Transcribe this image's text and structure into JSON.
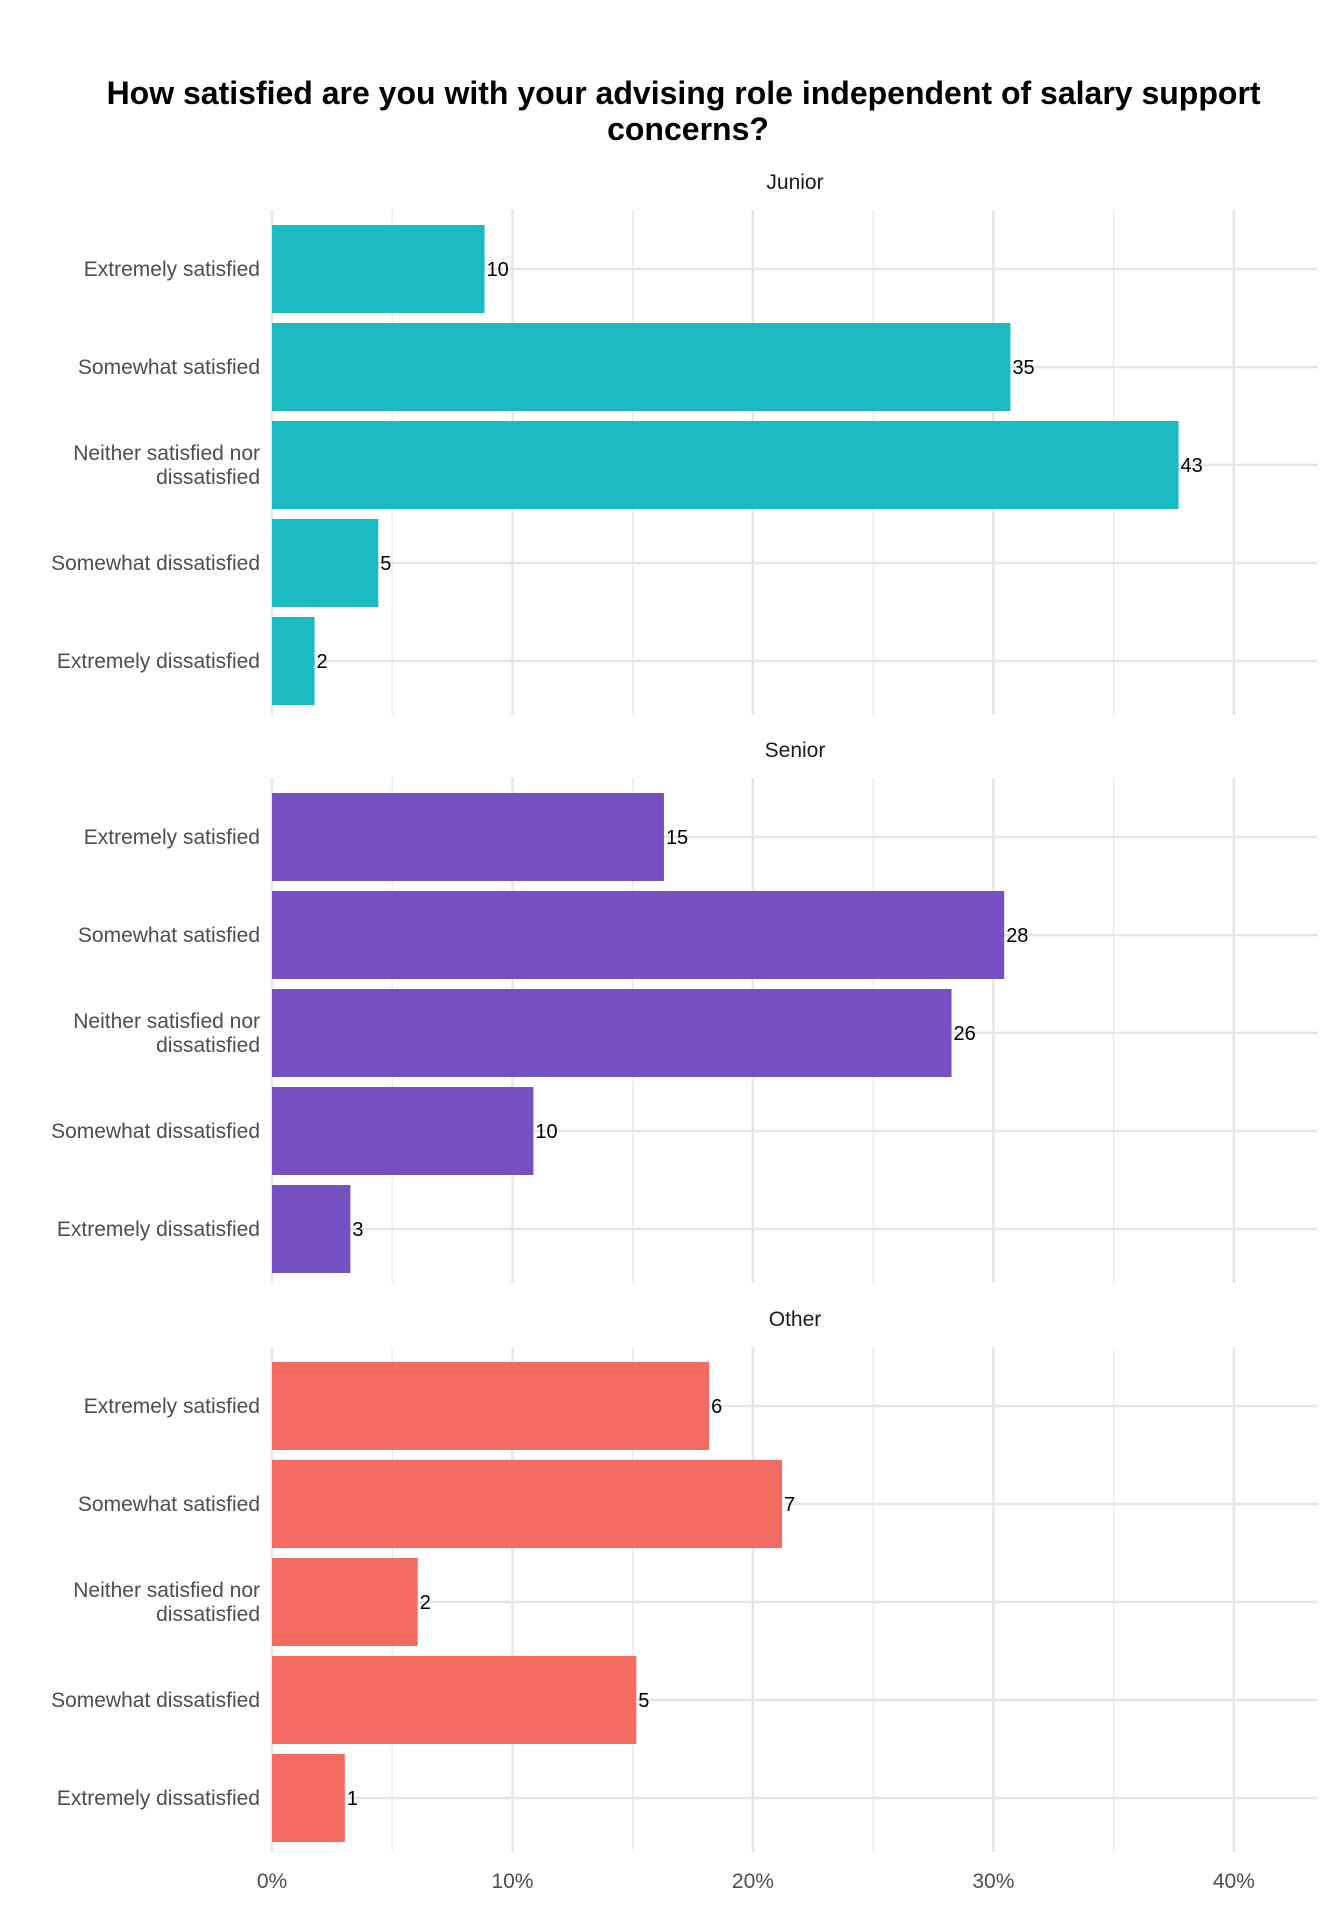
{
  "chart_data": {
    "type": "bar",
    "orientation": "horizontal",
    "title": "How satisfied are you with your advising role independent of salary support concerns?",
    "title_lines": [
      "How satisfied are you with your advising role independent of salary support",
      "concerns?"
    ],
    "categories": [
      "Extremely satisfied",
      "Somewhat satisfied",
      "Neither satisfied nor dissatisfied",
      "Somewhat dissatisfied",
      "Extremely dissatisfied"
    ],
    "category_label_lines": [
      [
        "Extremely satisfied"
      ],
      [
        "Somewhat satisfied"
      ],
      [
        "Neither satisfied nor",
        "dissatisfied"
      ],
      [
        "Somewhat dissatisfied"
      ],
      [
        "Extremely dissatisfied"
      ]
    ],
    "xlim": [
      0,
      0.435
    ],
    "x_ticks": [
      0,
      0.1,
      0.2,
      0.3,
      0.4
    ],
    "x_tick_labels": [
      "0%",
      "10%",
      "20%",
      "30%",
      "40%"
    ],
    "grid": true,
    "facets": [
      {
        "name": "Junior",
        "color": "#19BAC1",
        "counts": [
          10,
          35,
          43,
          5,
          2
        ],
        "percent": [
          0.0884,
          0.3071,
          0.377,
          0.0442,
          0.0177
        ]
      },
      {
        "name": "Senior",
        "color": "#7550C1",
        "counts": [
          15,
          28,
          26,
          10,
          3
        ],
        "percent": [
          0.163,
          0.3045,
          0.2826,
          0.1087,
          0.0326
        ]
      },
      {
        "name": "Other",
        "color": "#F46B61",
        "counts": [
          6,
          7,
          2,
          5,
          1
        ],
        "percent": [
          0.1818,
          0.2121,
          0.0606,
          0.1515,
          0.0303
        ]
      }
    ]
  }
}
